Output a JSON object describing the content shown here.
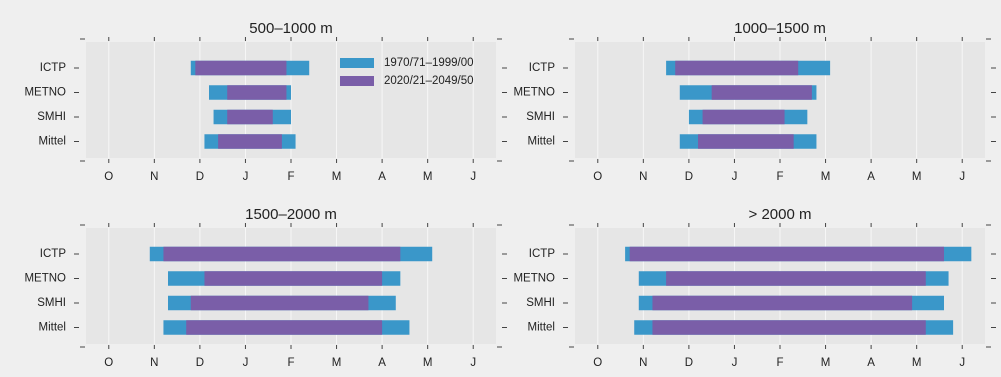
{
  "legend": [
    {
      "name": "1970/71–1999/00",
      "color": "#3a97c9"
    },
    {
      "name": "2020/21–2049/50",
      "color": "#7a5ea8"
    }
  ],
  "colors": {
    "background": "#efefef",
    "plot_area": "#e6e6e6",
    "gridline": "#f7f7f7"
  },
  "chart_data": [
    {
      "type": "bar",
      "title": "500–1000 m",
      "categories": [
        "ICTP",
        "METNO",
        "SMHI",
        "Mittel"
      ],
      "xticks": [
        "O",
        "N",
        "D",
        "J",
        "F",
        "M",
        "A",
        "M",
        "J"
      ],
      "xlim": [
        -0.5,
        8.5
      ],
      "series": [
        {
          "name": "1970/71–1999/00",
          "start": [
            1.8,
            2.2,
            2.3,
            2.1
          ],
          "end": [
            4.4,
            4.0,
            4.0,
            4.1
          ]
        },
        {
          "name": "2020/21–2049/50",
          "start": [
            1.9,
            2.6,
            2.6,
            2.4
          ],
          "end": [
            3.9,
            3.9,
            3.6,
            3.8
          ]
        }
      ]
    },
    {
      "type": "bar",
      "title": "1000–1500 m",
      "categories": [
        "ICTP",
        "METNO",
        "SMHI",
        "Mittel"
      ],
      "xticks": [
        "O",
        "N",
        "D",
        "J",
        "F",
        "M",
        "A",
        "M",
        "J"
      ],
      "xlim": [
        -0.5,
        8.5
      ],
      "series": [
        {
          "name": "1970/71–1999/00",
          "start": [
            1.5,
            1.8,
            2.0,
            1.8
          ],
          "end": [
            5.1,
            4.8,
            4.6,
            4.8
          ]
        },
        {
          "name": "2020/21–2049/50",
          "start": [
            1.7,
            2.5,
            2.3,
            2.2
          ],
          "end": [
            4.4,
            4.7,
            4.1,
            4.3
          ]
        }
      ]
    },
    {
      "type": "bar",
      "title": "1500–2000 m",
      "categories": [
        "ICTP",
        "METNO",
        "SMHI",
        "Mittel"
      ],
      "xticks": [
        "O",
        "N",
        "D",
        "J",
        "F",
        "M",
        "A",
        "M",
        "J"
      ],
      "xlim": [
        -0.5,
        8.5
      ],
      "series": [
        {
          "name": "1970/71–1999/00",
          "start": [
            0.9,
            1.3,
            1.3,
            1.2
          ],
          "end": [
            7.1,
            6.4,
            6.3,
            6.6
          ]
        },
        {
          "name": "2020/21–2049/50",
          "start": [
            1.2,
            2.1,
            1.8,
            1.7
          ],
          "end": [
            6.4,
            6.0,
            5.7,
            6.0
          ]
        }
      ]
    },
    {
      "type": "bar",
      "title": "> 2000 m",
      "categories": [
        "ICTP",
        "METNO",
        "SMHI",
        "Mittel"
      ],
      "xticks": [
        "O",
        "N",
        "D",
        "J",
        "F",
        "M",
        "A",
        "M",
        "J"
      ],
      "xlim": [
        -0.5,
        8.5
      ],
      "series": [
        {
          "name": "1970/71–1999/00",
          "start": [
            0.6,
            0.9,
            0.9,
            0.8
          ],
          "end": [
            8.2,
            7.7,
            7.6,
            7.8
          ]
        },
        {
          "name": "2020/21–2049/50",
          "start": [
            0.7,
            1.5,
            1.2,
            1.2
          ],
          "end": [
            7.6,
            7.2,
            6.9,
            7.2
          ]
        }
      ]
    }
  ]
}
